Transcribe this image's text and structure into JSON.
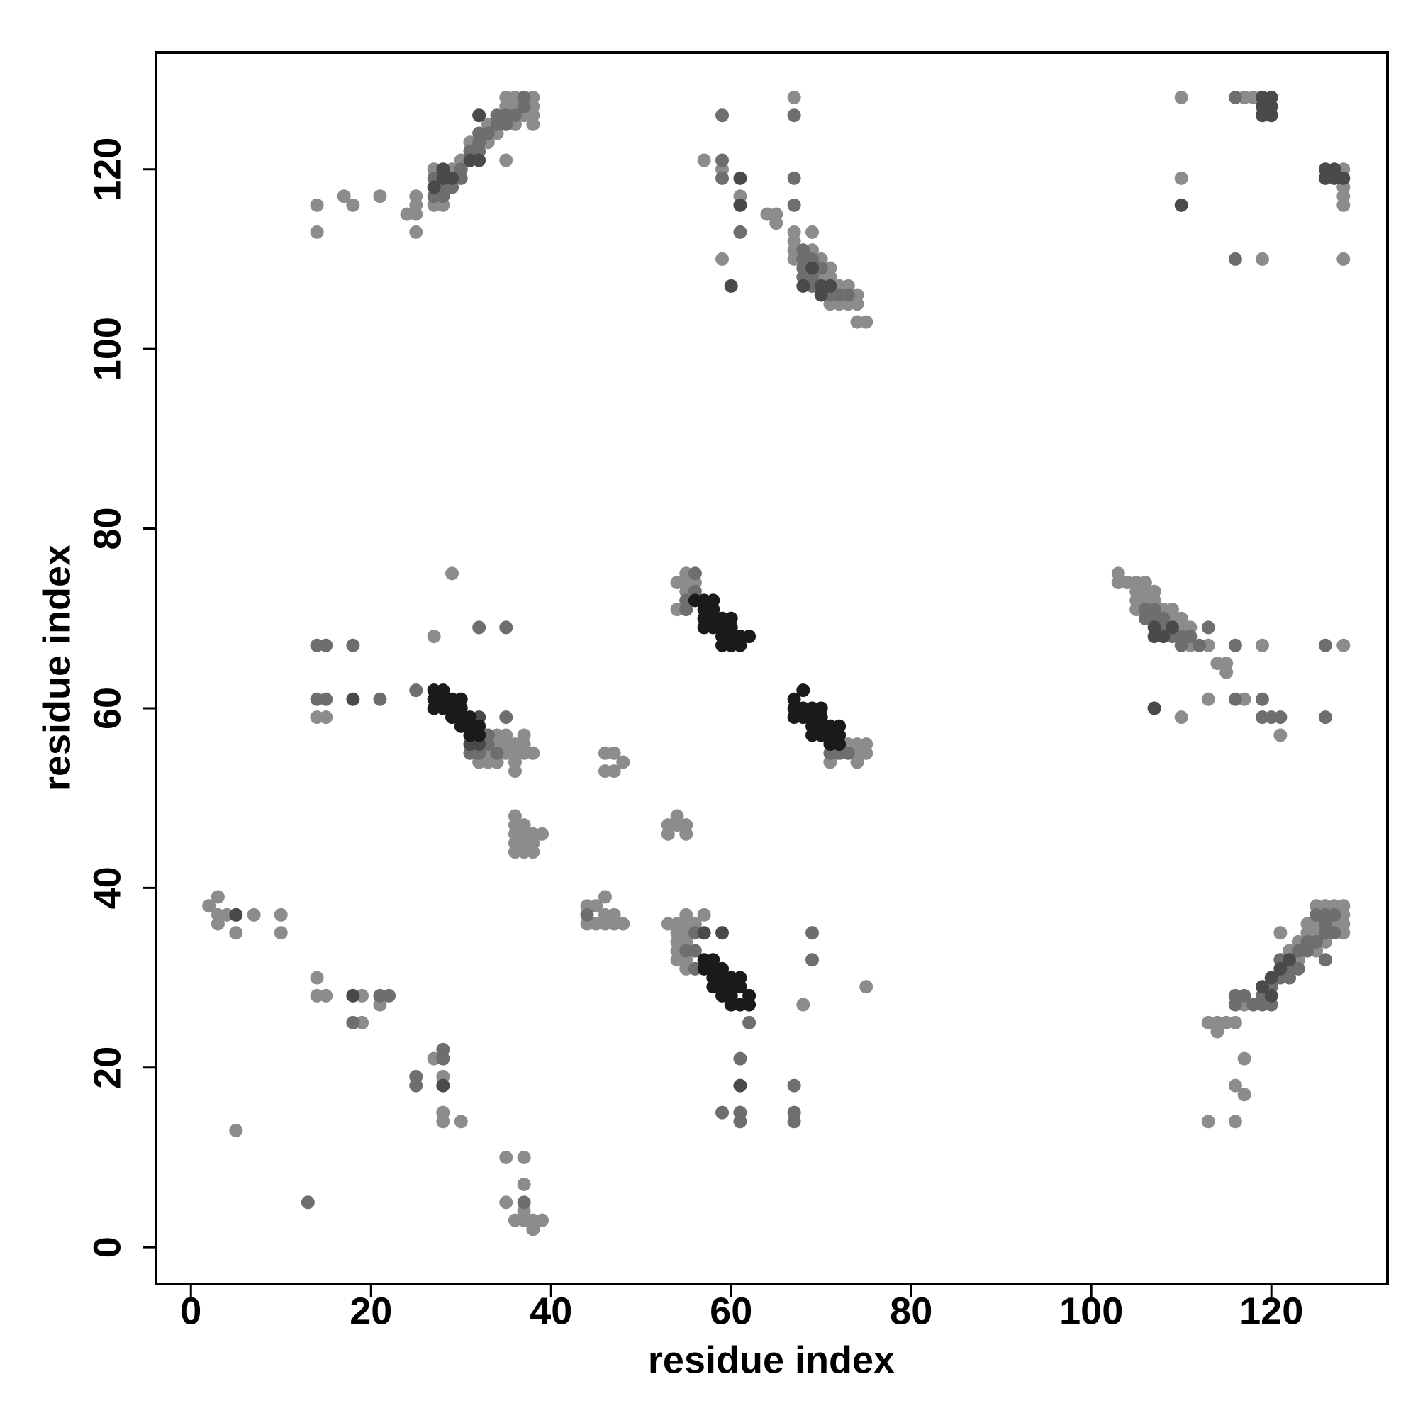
{
  "chart_data": {
    "type": "scatter",
    "xlabel": "residue index",
    "ylabel": "residue index",
    "xlim": [
      -3.88,
      132.9
    ],
    "ylim": [
      -4.09,
      133
    ],
    "xticks": [
      0,
      20,
      40,
      60,
      80,
      100,
      120
    ],
    "yticks": [
      0,
      20,
      40,
      60,
      80,
      100,
      120
    ],
    "series": [
      {
        "color": "#8c8c8c",
        "x": [
          2,
          3,
          3,
          3,
          4,
          5,
          7,
          10,
          10,
          5,
          14,
          14,
          15,
          19,
          21,
          19,
          27,
          28,
          28,
          28,
          30,
          35,
          37,
          37,
          35,
          36,
          37,
          38,
          39,
          38,
          37,
          44,
          44,
          45,
          45,
          46,
          46,
          46,
          47,
          47,
          48,
          36,
          36,
          36,
          36,
          36,
          37,
          37,
          37,
          37,
          38,
          38,
          38,
          39,
          46,
          47,
          46,
          47,
          48,
          53,
          53,
          54,
          54,
          55,
          55,
          32,
          33,
          33,
          34,
          34,
          34,
          35,
          35,
          35,
          36,
          36,
          36,
          36,
          37,
          37,
          37,
          38,
          27,
          29,
          14,
          15,
          54,
          54,
          55,
          55,
          55,
          56,
          71,
          73,
          74,
          74,
          74,
          75,
          75,
          53,
          54,
          54,
          54,
          54,
          54,
          55,
          55,
          55,
          55,
          55,
          55,
          56,
          57,
          68,
          75,
          14,
          14,
          17,
          18,
          21,
          24,
          25,
          25,
          25,
          25,
          27,
          27,
          28,
          29,
          30,
          31,
          33,
          33,
          34,
          35,
          35,
          35,
          36,
          36,
          36,
          38,
          38,
          38,
          38,
          37,
          57,
          59,
          61,
          59,
          64,
          65,
          65,
          67,
          67,
          67,
          67,
          67,
          69,
          69,
          70,
          70,
          71,
          71,
          71,
          72,
          72,
          73,
          73,
          74,
          74,
          74,
          75,
          110,
          110,
          117,
          118,
          119,
          128,
          128,
          128,
          128,
          128,
          103,
          103,
          104,
          105,
          105,
          105,
          105,
          106,
          106,
          106,
          107,
          107,
          108,
          109,
          109,
          110,
          110,
          111,
          111,
          113,
          114,
          115,
          115,
          119,
          128,
          110,
          113,
          117,
          121,
          113,
          114,
          114,
          115,
          116,
          117,
          121,
          122,
          123,
          123,
          124,
          124,
          125,
          125,
          125,
          125,
          126,
          126,
          127,
          127,
          128,
          128,
          128,
          128,
          117,
          116,
          117,
          113,
          116
        ],
        "values": [
          38,
          39,
          37,
          36,
          37,
          35,
          37,
          37,
          35,
          13,
          30,
          28,
          28,
          28,
          27,
          25,
          21,
          19,
          15,
          14,
          14,
          10,
          10,
          7,
          5,
          3,
          3,
          3,
          3,
          2,
          4,
          38,
          36,
          38,
          36,
          39,
          37,
          36,
          37,
          36,
          36,
          48,
          47,
          46,
          45,
          44,
          47,
          46,
          45,
          44,
          46,
          45,
          44,
          46,
          55,
          55,
          53,
          53,
          54,
          47,
          46,
          48,
          47,
          47,
          46,
          54,
          55,
          54,
          57,
          56,
          54,
          57,
          56,
          55,
          56,
          55,
          54,
          53,
          57,
          56,
          55,
          55,
          68,
          75,
          59,
          59,
          74,
          71,
          75,
          74,
          73,
          74,
          54,
          56,
          56,
          55,
          54,
          56,
          55,
          36,
          36,
          35,
          34,
          33,
          32,
          37,
          36,
          35,
          34,
          32,
          31,
          36,
          37,
          27,
          29,
          116,
          113,
          117,
          116,
          117,
          115,
          117,
          116,
          115,
          113,
          120,
          116,
          116,
          120,
          121,
          123,
          125,
          123,
          124,
          128,
          127,
          121,
          128,
          127,
          125,
          128,
          127,
          126,
          125,
          126,
          121,
          120,
          117,
          110,
          115,
          115,
          114,
          128,
          113,
          112,
          111,
          110,
          113,
          111,
          110,
          108,
          109,
          108,
          105,
          107,
          105,
          107,
          105,
          106,
          105,
          103,
          103,
          128,
          119,
          128,
          128,
          110,
          120,
          118,
          117,
          116,
          110,
          75,
          74,
          74,
          74,
          73,
          72,
          71,
          74,
          73,
          72,
          73,
          72,
          71,
          71,
          70,
          70,
          69,
          69,
          67,
          67,
          65,
          65,
          64,
          67,
          67,
          59,
          61,
          61,
          57,
          25,
          24,
          25,
          25,
          25,
          27,
          35,
          33,
          34,
          32,
          36,
          35,
          38,
          36,
          35,
          33,
          38,
          34,
          38,
          36,
          38,
          37,
          36,
          35,
          21,
          18,
          17,
          14,
          14
        ]
      },
      {
        "color": "#6e6e6e",
        "x": [
          13,
          21,
          22,
          18,
          25,
          25,
          28,
          28,
          37,
          44,
          14,
          15,
          18,
          14,
          15,
          21,
          25,
          32,
          35,
          35,
          33,
          33,
          34,
          31,
          32,
          56,
          55,
          55,
          56,
          62,
          61,
          61,
          61,
          59,
          67,
          67,
          67,
          69,
          69,
          56,
          56,
          55,
          56,
          71,
          72,
          73,
          59,
          59,
          59,
          67,
          67,
          67,
          68,
          68,
          68,
          68,
          69,
          69,
          69,
          70,
          71,
          72,
          73,
          61,
          30,
          30,
          27,
          27,
          28,
          28,
          29,
          31,
          32,
          32,
          32,
          33,
          34,
          34,
          35,
          35,
          36,
          37,
          37,
          116,
          116,
          126,
          116,
          116,
          119,
          119,
          120,
          121,
          126,
          106,
          106,
          107,
          107,
          108,
          108,
          109,
          110,
          110,
          111,
          113,
          112,
          116,
          116,
          117,
          118,
          119,
          119,
          120,
          120,
          121,
          121,
          122,
          122,
          123,
          123,
          124,
          124,
          125,
          126,
          126,
          126,
          125,
          126,
          127,
          127
        ],
        "values": [
          5,
          28,
          28,
          25,
          19,
          18,
          22,
          21,
          5,
          37,
          67,
          67,
          67,
          61,
          61,
          61,
          62,
          69,
          69,
          59,
          57,
          56,
          55,
          55,
          55,
          73,
          72,
          71,
          75,
          25,
          21,
          15,
          14,
          15,
          18,
          15,
          14,
          35,
          32,
          35,
          33,
          33,
          31,
          55,
          55,
          55,
          126,
          121,
          119,
          116,
          119,
          126,
          111,
          110,
          109,
          108,
          110,
          108,
          107,
          109,
          106,
          106,
          106,
          113,
          120,
          119,
          119,
          117,
          118,
          117,
          118,
          122,
          124,
          123,
          122,
          124,
          126,
          125,
          126,
          125,
          126,
          128,
          127,
          128,
          110,
          67,
          67,
          61,
          61,
          59,
          59,
          59,
          59,
          70,
          71,
          70,
          71,
          69,
          70,
          68,
          68,
          67,
          68,
          69,
          67,
          28,
          27,
          28,
          27,
          28,
          27,
          29,
          27,
          32,
          30,
          31,
          30,
          33,
          31,
          34,
          33,
          34,
          32,
          35,
          36,
          37,
          37,
          37,
          35
        ]
      },
      {
        "color": "#4a4a4a",
        "x": [
          5,
          18,
          28,
          18,
          32,
          31,
          32,
          29,
          119,
          119,
          119,
          120,
          120,
          120,
          126,
          126,
          127,
          127,
          128,
          110,
          107,
          61,
          61,
          61,
          57,
          59,
          32,
          31,
          32,
          69,
          70,
          70,
          71,
          68,
          120,
          119,
          121,
          122,
          120,
          107,
          108,
          109,
          107,
          60,
          28,
          27,
          28
        ],
        "values": [
          37,
          28,
          18,
          61,
          126,
          121,
          121,
          119,
          128,
          127,
          126,
          128,
          127,
          126,
          120,
          119,
          120,
          119,
          119,
          116,
          60,
          116,
          119,
          18,
          35,
          35,
          59,
          56,
          56,
          109,
          107,
          106,
          107,
          107,
          30,
          29,
          31,
          32,
          28,
          69,
          68,
          69,
          68,
          107,
          120,
          118,
          119
        ]
      },
      {
        "color": "#1a1a1a",
        "x": [
          27,
          27,
          27,
          28,
          28,
          28,
          29,
          29,
          29,
          30,
          30,
          30,
          30,
          31,
          31,
          31,
          32,
          32,
          56,
          57,
          57,
          57,
          57,
          58,
          58,
          58,
          58,
          59,
          59,
          59,
          59,
          60,
          60,
          60,
          60,
          61,
          61,
          62,
          67,
          67,
          67,
          68,
          68,
          68,
          69,
          69,
          69,
          69,
          70,
          70,
          70,
          70,
          71,
          71,
          71,
          72,
          72,
          72,
          57,
          57,
          58,
          58,
          58,
          58,
          59,
          59,
          59,
          59,
          60,
          60,
          60,
          60,
          61,
          61,
          61,
          62,
          62
        ],
        "values": [
          62,
          61,
          60,
          62,
          61,
          60,
          61,
          60,
          59,
          61,
          60,
          59,
          58,
          59,
          58,
          57,
          58,
          57,
          72,
          72,
          71,
          70,
          69,
          72,
          71,
          70,
          69,
          70,
          69,
          68,
          67,
          70,
          69,
          68,
          67,
          68,
          67,
          68,
          61,
          60,
          59,
          62,
          60,
          59,
          60,
          59,
          58,
          57,
          60,
          59,
          58,
          57,
          58,
          57,
          56,
          58,
          57,
          56,
          32,
          31,
          32,
          31,
          30,
          29,
          31,
          30,
          29,
          28,
          30,
          29,
          28,
          27,
          30,
          29,
          27,
          28,
          27
        ]
      }
    ]
  }
}
